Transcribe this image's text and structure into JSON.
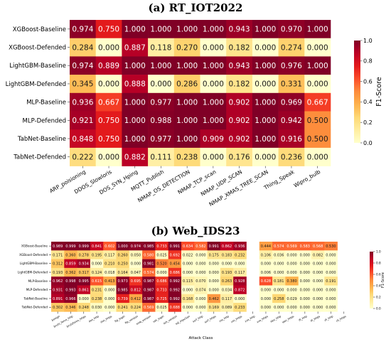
{
  "chart_data": [
    {
      "type": "heatmap",
      "title": "(a) RT_IOT2022",
      "xlabel": "",
      "ylabel": "",
      "rows": [
        "XGBoost-Baseline",
        "XGBoost-Defended",
        "LightGBM-Baseline",
        "LightGBM-Defended",
        "MLP-Baseline",
        "MLP-Defended",
        "TabNet-Baseline",
        "TabNet-Defended"
      ],
      "columns": [
        "ARP_poisioning",
        "DDOS_Slowloris",
        "DOS_SYN_Hping",
        "MQTT_Publish",
        "NMAP_OS_DETECTION",
        "NMAP_TCP_scan",
        "NMAP_UDP_SCAN",
        "NMAP_XMAS_TREE_SCAN",
        "Thing_Speak",
        "Wipro_bulb"
      ],
      "values": [
        [
          "0.974",
          "0.750",
          "1.000",
          "1.000",
          "1.000",
          "1.000",
          "0.943",
          "1.000",
          "0.970",
          "1.000"
        ],
        [
          "0.284",
          "0.000",
          "0.887",
          "0.118",
          "0.270",
          "0.000",
          "0.182",
          "0.000",
          "0.274",
          "0.000"
        ],
        [
          "0.974",
          "0.889",
          "1.000",
          "1.000",
          "1.000",
          "1.000",
          "0.943",
          "1.000",
          "0.976",
          "1.000"
        ],
        [
          "0.345",
          "0.000",
          "0.888",
          "0.000",
          "0.286",
          "0.000",
          "0.182",
          "0.000",
          "0.331",
          "0.000"
        ],
        [
          "0.936",
          "0.667",
          "1.000",
          "0.977",
          "1.000",
          "1.000",
          "0.902",
          "1.000",
          "0.969",
          "0.667"
        ],
        [
          "0.921",
          "0.750",
          "1.000",
          "0.988",
          "1.000",
          "1.000",
          "0.902",
          "1.000",
          "0.942",
          "0.500"
        ],
        [
          "0.848",
          "0.750",
          "1.000",
          "0.977",
          "1.000",
          "0.909",
          "0.902",
          "1.000",
          "0.916",
          "0.500"
        ],
        [
          "0.222",
          "0.000",
          "0.882",
          "0.111",
          "0.238",
          "0.000",
          "0.176",
          "0.000",
          "0.236",
          "0.000"
        ]
      ],
      "colorbar": {
        "label": "F1-Score",
        "ticks": [
          "0.0",
          "0.2",
          "0.4",
          "0.6",
          "0.8",
          "1.0"
        ],
        "range": [
          0,
          1
        ]
      }
    },
    {
      "type": "heatmap",
      "title": "(b) Web_IDS23",
      "xlabel": "Attack Class",
      "ylabel": "",
      "rows": [
        "XGBoost-Baseline",
        "XGBoost-Defended",
        "LightGBM-Baseline",
        "LightGBM-Defended",
        "MLP-Baseline",
        "MLP-Defended",
        "TabNet-Baseline",
        "TabNet-Defended"
      ],
      "columns": [
        "benign",
        "brute_force_http",
        "bruteforce_https",
        "dos_http",
        "dos_https",
        "ftp_login",
        "ftp_version",
        "smb_version",
        "ssh_login",
        "ssh_version",
        "sql_injection",
        "ssrf_http",
        "ssrf_https",
        "xss_http",
        "xss_https",
        "xxe_http",
        "xxe_https",
        "idor_http",
        "idor_https",
        "lfi_http",
        "lfi_https",
        "rfi_http",
        "rfi_https"
      ],
      "values": [
        [
          "0.989",
          "0.999",
          "0.999",
          "0.841",
          "0.602",
          "1.000",
          "0.974",
          "0.985",
          "0.733",
          "0.991",
          "0.634",
          "0.582",
          "0.991",
          "0.862",
          "0.936",
          "",
          "0.444",
          "0.574",
          "0.569",
          "0.583",
          "0.568",
          "0.530",
          ""
        ],
        [
          "0.171",
          "0.360",
          "0.278",
          "0.195",
          "0.117",
          "0.260",
          "0.050",
          "0.580",
          "0.025",
          "0.692",
          "0.022",
          "0.000",
          "0.175",
          "0.183",
          "0.232",
          "",
          "0.106",
          "0.036",
          "0.000",
          "0.000",
          "0.082",
          "0.000",
          ""
        ],
        [
          "0.312",
          "0.859",
          "0.934",
          "0.000",
          "0.210",
          "0.250",
          "0.000",
          "0.981",
          "0.520",
          "0.454",
          "0.000",
          "0.000",
          "0.000",
          "0.000",
          "0.000",
          "",
          "0.000",
          "0.000",
          "0.000",
          "0.000",
          "0.000",
          "0.000",
          ""
        ],
        [
          "0.193",
          "0.362",
          "0.317",
          "0.124",
          "0.018",
          "0.164",
          "0.047",
          "0.574",
          "0.000",
          "0.686",
          "0.000",
          "0.000",
          "0.000",
          "0.193",
          "0.117",
          "",
          "0.006",
          "0.000",
          "0.000",
          "0.000",
          "0.000",
          "0.000",
          ""
        ],
        [
          "0.962",
          "0.998",
          "0.995",
          "0.615",
          "0.413",
          "0.973",
          "0.695",
          "0.987",
          "0.686",
          "0.992",
          "0.115",
          "0.070",
          "0.000",
          "0.263",
          "0.928",
          "",
          "0.628",
          "0.181",
          "0.380",
          "0.000",
          "0.000",
          "0.191",
          ""
        ],
        [
          "0.931",
          "0.993",
          "0.861",
          "0.231",
          "0.000",
          "0.985",
          "0.812",
          "0.987",
          "0.733",
          "0.992",
          "0.000",
          "0.074",
          "0.000",
          "0.034",
          "0.872",
          "",
          "0.000",
          "0.000",
          "0.000",
          "0.000",
          "0.000",
          "0.000",
          ""
        ],
        [
          "0.891",
          "0.966",
          "0.000",
          "0.238",
          "0.000",
          "0.739",
          "0.412",
          "0.987",
          "0.725",
          "0.992",
          "0.168",
          "0.000",
          "0.462",
          "0.117",
          "0.000",
          "",
          "0.000",
          "0.258",
          "0.029",
          "0.000",
          "0.000",
          "0.000",
          ""
        ],
        [
          "0.302",
          "0.346",
          "0.248",
          "0.030",
          "0.000",
          "0.241",
          "0.224",
          "0.569",
          "0.025",
          "0.688",
          "0.000",
          "0.000",
          "0.169",
          "0.089",
          "0.233",
          "",
          "0.000",
          "0.000",
          "0.000",
          "0.000",
          "0.000",
          "0.000",
          ""
        ]
      ],
      "colorbar": {
        "label": "F1-Score",
        "ticks": [
          "0.0",
          "0.2",
          "0.4",
          "0.6",
          "0.8",
          "1.0"
        ],
        "range": [
          0,
          1
        ]
      }
    }
  ]
}
